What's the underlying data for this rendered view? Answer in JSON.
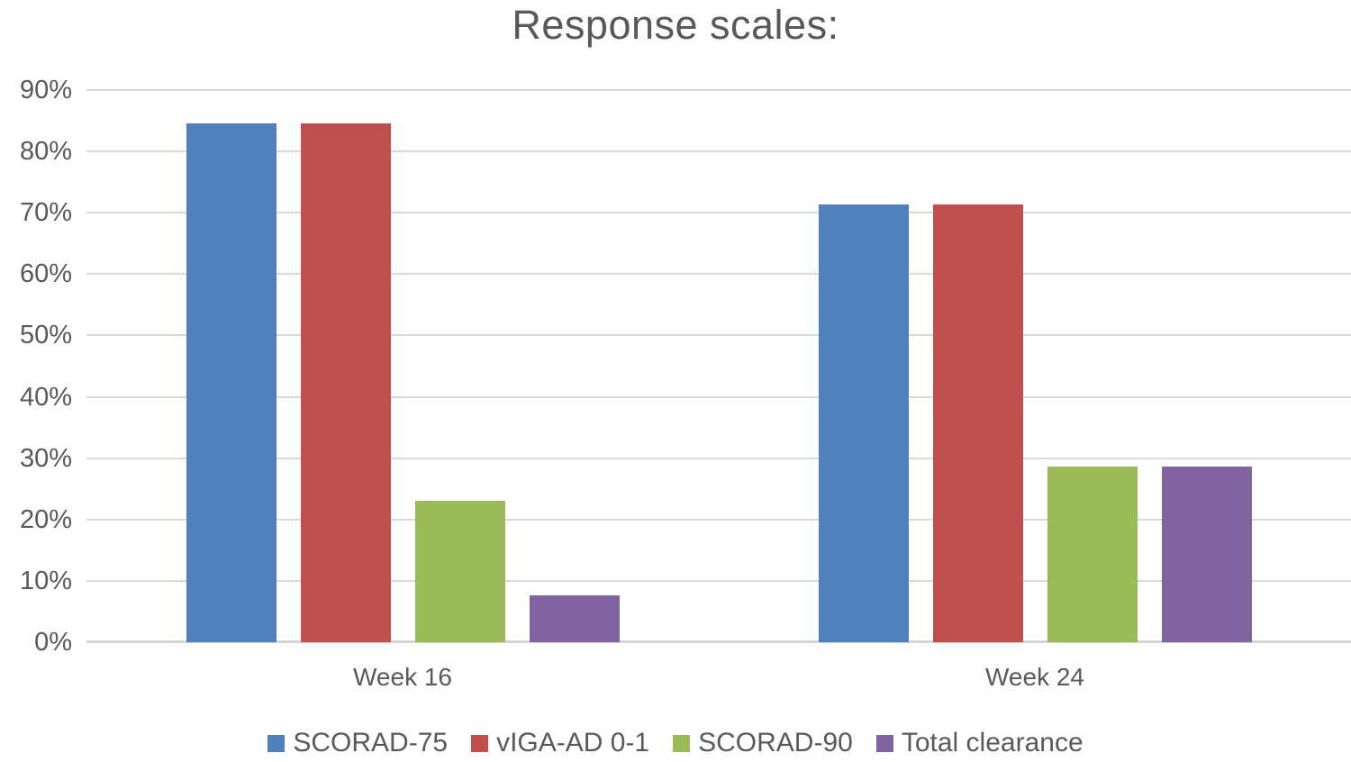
{
  "title": "Response scales:",
  "chart_data": {
    "type": "bar",
    "title": "Response scales:",
    "categories": [
      "Week 16",
      "Week 24"
    ],
    "series": [
      {
        "name": "SCORAD-75",
        "color": "#4F81BD",
        "values": [
          84.6,
          71.4
        ]
      },
      {
        "name": "vIGA-AD 0-1",
        "color": "#C0504D",
        "values": [
          84.6,
          71.4
        ]
      },
      {
        "name": "SCORAD-90",
        "color": "#9BBB59",
        "values": [
          23.1,
          28.6
        ]
      },
      {
        "name": "Total clearance",
        "color": "#8064A2",
        "values": [
          7.7,
          28.6
        ]
      }
    ],
    "xlabel": "",
    "ylabel": "",
    "ylim": [
      0,
      90
    ],
    "ytick_step": 10,
    "yticks": [
      "0%",
      "10%",
      "20%",
      "30%",
      "40%",
      "50%",
      "60%",
      "70%",
      "80%",
      "90%"
    ],
    "grid": true,
    "legend_position": "bottom"
  },
  "colors": {
    "text": "#595959",
    "gridline": "#D9D9D9",
    "axis_line": "#D4D4D4",
    "background": "#FFFFFF"
  }
}
